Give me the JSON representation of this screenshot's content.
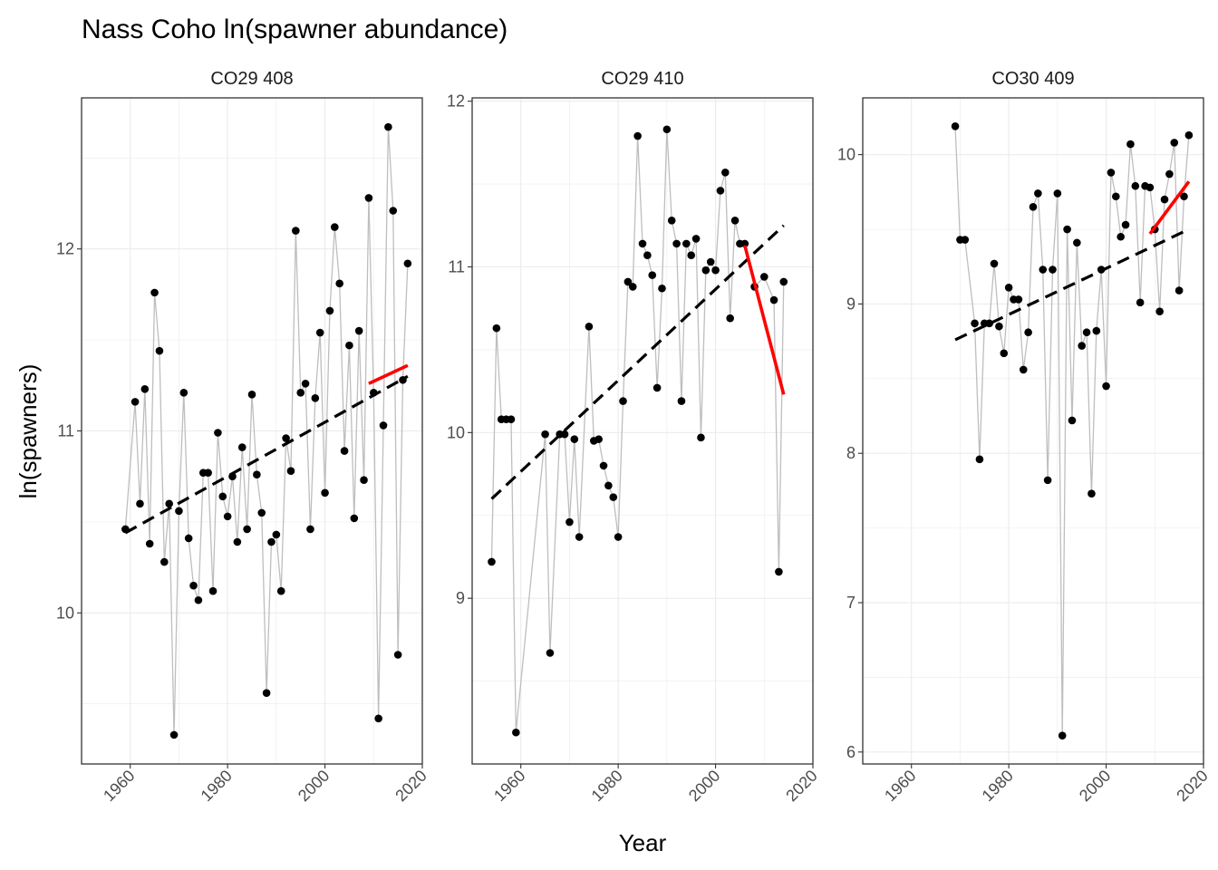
{
  "title": "Nass Coho ln(spawner abundance)",
  "xlabel": "Year",
  "ylabel": "ln(spawners)",
  "colors": {
    "observed_line": "#bebebe",
    "points": "#000000",
    "long_term_trend": "#000000",
    "recent_trend": "#ff0000",
    "grid": "#ebebeb",
    "panel_border": "#333333"
  },
  "chart_data": [
    {
      "type": "scatter",
      "panel": "CO29 408",
      "xlim": [
        1950,
        2020
      ],
      "ylim": [
        9.17,
        12.83
      ],
      "x_ticks": [
        1960,
        1980,
        2000,
        2020
      ],
      "y_ticks": [
        10,
        11,
        12
      ],
      "grid": true,
      "series": [
        {
          "x": [
            1959,
            1961,
            1962,
            1963,
            1964,
            1965,
            1966,
            1967,
            1968,
            1969,
            1970,
            1971,
            1972,
            1973,
            1974,
            1975,
            1976,
            1977,
            1978,
            1979,
            1980,
            1981,
            1982,
            1983,
            1984,
            1985,
            1986,
            1987,
            1988,
            1989,
            1990,
            1991,
            1992,
            1993,
            1994,
            1995,
            1996,
            1997,
            1998,
            1999,
            2000,
            2001,
            2002,
            2003,
            2004,
            2005,
            2006,
            2007,
            2008,
            2009,
            2010,
            2011,
            2012,
            2013,
            2014,
            2015,
            2016,
            2017
          ],
          "y": [
            10.46,
            11.16,
            10.6,
            11.23,
            10.38,
            11.76,
            11.44,
            10.28,
            10.6,
            9.33,
            10.56,
            11.21,
            10.41,
            10.15,
            10.07,
            10.77,
            10.77,
            10.12,
            10.99,
            10.64,
            10.53,
            10.75,
            10.39,
            10.91,
            10.46,
            11.2,
            10.76,
            10.55,
            9.56,
            10.39,
            10.43,
            10.12,
            10.96,
            10.78,
            12.1,
            11.21,
            11.26,
            10.46,
            11.18,
            11.54,
            10.66,
            11.66,
            12.12,
            11.81,
            10.89,
            11.47,
            10.52,
            11.55,
            10.73,
            12.28,
            11.21,
            9.42,
            11.03,
            12.67,
            12.21,
            9.77,
            11.28,
            11.92
          ]
        },
        {
          "x": [
            1959,
            2017
          ],
          "y": [
            10.44,
            11.3
          ]
        },
        {
          "x": [
            2009,
            2017
          ],
          "y": [
            11.26,
            11.36
          ]
        }
      ]
    },
    {
      "type": "scatter",
      "panel": "CO29 410",
      "xlim": [
        1950,
        2020
      ],
      "ylim": [
        8.0,
        12.02
      ],
      "x_ticks": [
        1960,
        1980,
        2000,
        2020
      ],
      "y_ticks": [
        9,
        10,
        11,
        12
      ],
      "grid": true,
      "series": [
        {
          "x": [
            1954,
            1955,
            1956,
            1957,
            1958,
            1959,
            1965,
            1966,
            1968,
            1969,
            1970,
            1971,
            1972,
            1974,
            1975,
            1976,
            1977,
            1978,
            1979,
            1980,
            1981,
            1982,
            1983,
            1984,
            1985,
            1986,
            1987,
            1988,
            1989,
            1990,
            1991,
            1992,
            1993,
            1994,
            1995,
            1996,
            1997,
            1998,
            1999,
            2000,
            2001,
            2002,
            2003,
            2004,
            2005,
            2006,
            2008,
            2010,
            2012,
            2013,
            2014
          ],
          "y": [
            9.22,
            10.63,
            10.08,
            10.08,
            10.08,
            8.19,
            9.99,
            8.67,
            9.99,
            9.99,
            9.46,
            9.96,
            9.37,
            10.64,
            9.95,
            9.96,
            9.8,
            9.68,
            9.61,
            9.37,
            10.19,
            10.91,
            10.88,
            11.79,
            11.14,
            11.07,
            10.95,
            10.27,
            10.87,
            11.83,
            11.28,
            11.14,
            10.19,
            11.14,
            11.07,
            11.17,
            9.97,
            10.98,
            11.03,
            10.98,
            11.46,
            11.57,
            10.69,
            11.28,
            11.14,
            11.14,
            10.88,
            10.94,
            10.8,
            9.16,
            10.91
          ]
        },
        {
          "x": [
            1954,
            2014
          ],
          "y": [
            9.6,
            11.25
          ]
        },
        {
          "x": [
            2006,
            2014
          ],
          "y": [
            11.13,
            10.23
          ]
        }
      ]
    },
    {
      "type": "scatter",
      "panel": "CO30 409",
      "xlim": [
        1950,
        2020
      ],
      "ylim": [
        5.92,
        10.38
      ],
      "x_ticks": [
        1960,
        1980,
        2000,
        2020
      ],
      "y_ticks": [
        6,
        7,
        8,
        9,
        10
      ],
      "grid": true,
      "series": [
        {
          "x": [
            1969,
            1970,
            1971,
            1973,
            1974,
            1975,
            1976,
            1977,
            1978,
            1979,
            1980,
            1981,
            1982,
            1983,
            1984,
            1985,
            1986,
            1987,
            1988,
            1989,
            1990,
            1991,
            1992,
            1993,
            1994,
            1995,
            1996,
            1997,
            1998,
            1999,
            2000,
            2001,
            2002,
            2003,
            2004,
            2005,
            2006,
            2007,
            2008,
            2009,
            2010,
            2011,
            2012,
            2013,
            2014,
            2015,
            2016,
            2017
          ],
          "y": [
            10.19,
            9.43,
            9.43,
            8.87,
            7.96,
            8.87,
            8.87,
            9.27,
            8.85,
            8.67,
            9.11,
            9.03,
            9.03,
            8.56,
            8.81,
            9.65,
            9.74,
            9.23,
            7.82,
            9.23,
            9.74,
            6.11,
            9.5,
            8.22,
            9.41,
            8.72,
            8.81,
            7.73,
            8.82,
            9.23,
            8.45,
            9.88,
            9.72,
            9.45,
            9.53,
            10.07,
            9.79,
            9.01,
            9.79,
            9.78,
            9.5,
            8.95,
            9.7,
            9.87,
            10.08,
            9.09,
            9.72,
            10.13
          ]
        },
        {
          "x": [
            1969,
            2017
          ],
          "y": [
            8.76,
            9.5
          ]
        },
        {
          "x": [
            2009,
            2017
          ],
          "y": [
            9.47,
            9.82
          ]
        }
      ]
    }
  ]
}
